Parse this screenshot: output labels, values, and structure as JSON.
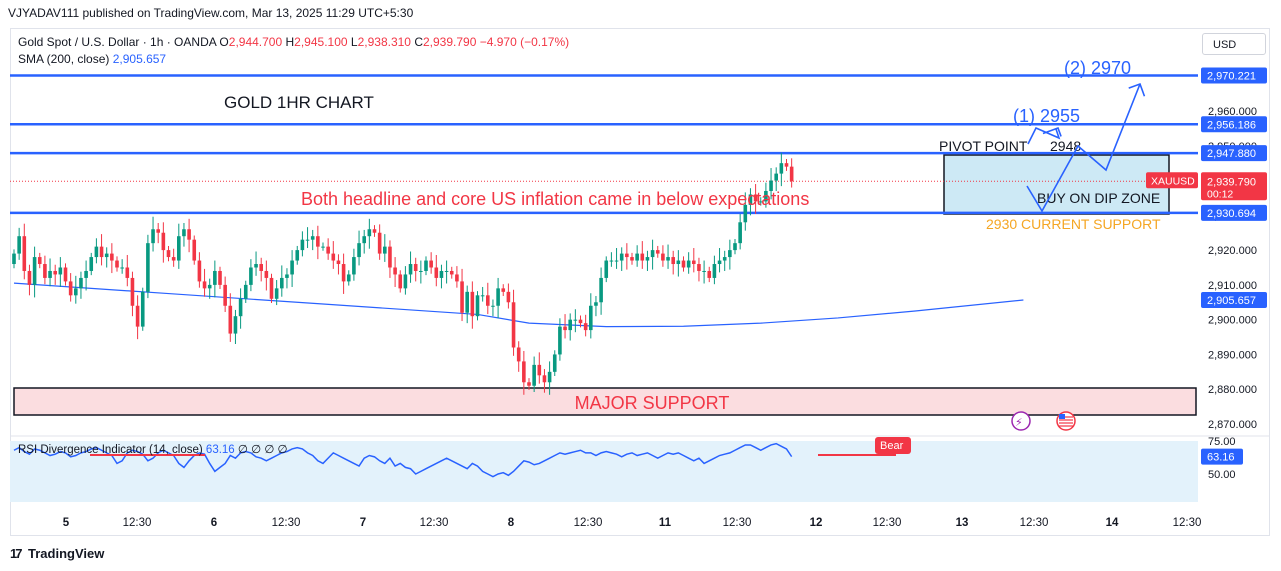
{
  "publisher": "VJYADAV111 published on TradingView.com, Mar 13, 2025 11:29 UTC+5:30",
  "currency_button": "USD",
  "legend": {
    "symbol": "Gold Spot / U.S. Dollar · 1h · OANDA",
    "o_label": "O",
    "o": "2,944.700",
    "h_label": "H",
    "h": "2,945.100",
    "l_label": "L",
    "l": "2,938.310",
    "c_label": "C",
    "c": "2,939.790",
    "change": "−4.970 (−0.17%)",
    "sma_label": "SMA (200, close)",
    "sma": "2,905.657"
  },
  "rsi_legend": {
    "label": "RSI Divergence Indicator (14, close)",
    "value": "63.16",
    "dots": "∅ ∅ ∅ ∅"
  },
  "branding": "TradingView",
  "colors": {
    "up": "#089981",
    "down": "#f23645",
    "level_line": "#2962ff",
    "annotation_blue": "#2962ff",
    "support_orange": "#f5a623",
    "major_support_fill": "#fbdde0",
    "zone_fill": "#cde9f5",
    "rsi_band": "#e3f2fb"
  },
  "chart_data": {
    "type": "candlestick",
    "symbol": "XAUUSD",
    "timeframe": "1h",
    "price_axis": {
      "ticks": [
        2960.0,
        2950.0,
        2940.0,
        2930.0,
        2920.0,
        2910.0,
        2900.0,
        2890.0,
        2880.0,
        2870.0
      ],
      "tick_labels": [
        "2,960.000",
        "2,950.000",
        "2,940.000",
        "2,930.000",
        "2,920.000",
        "2,910.000",
        "2,900.000",
        "2,890.000",
        "2,880.000",
        "2,870.000"
      ],
      "range": [
        2868,
        2973
      ]
    },
    "time_axis": {
      "labels": [
        "5",
        "12:30",
        "6",
        "12:30",
        "7",
        "12:30",
        "8",
        "12:30",
        "11",
        "12:30",
        "12",
        "12:30",
        "13",
        "12:30",
        "14",
        "12:30"
      ],
      "bold": [
        "5",
        "6",
        "7",
        "8",
        "11",
        "12",
        "13",
        "14"
      ]
    },
    "horizontal_levels": [
      {
        "value": 2970.221,
        "label": "2,970.221"
      },
      {
        "value": 2956.186,
        "label": "2,956.186"
      },
      {
        "value": 2947.88,
        "label": "2,947.880"
      },
      {
        "value": 2930.694,
        "label": "2,930.694"
      }
    ],
    "last_price": {
      "symbol": "XAUUSD",
      "value": 2939.79,
      "label": "2,939.790",
      "countdown": "00:12"
    },
    "sma": {
      "period": 200,
      "last": 2905.657,
      "label": "2,905.657",
      "x_bars": [
        0,
        30,
        60,
        90,
        100,
        115,
        130,
        145,
        160,
        175,
        196
      ],
      "values": [
        2910.5,
        2907.5,
        2904.5,
        2901.5,
        2899.0,
        2898.0,
        2898.1,
        2899.0,
        2900.5,
        2902.5,
        2905.657
      ]
    },
    "closes": [
      2919,
      2924,
      2914,
      2910,
      2918,
      2916,
      2912,
      2914,
      2913,
      2915,
      2911,
      2907,
      2909,
      2912,
      2914,
      2918,
      2921,
      2918,
      2919,
      2917,
      2915,
      2915,
      2912,
      2904,
      2898,
      2908,
      2922,
      2926,
      2925,
      2920,
      2918,
      2917,
      2924,
      2926,
      2923,
      2917,
      2911,
      2909,
      2910,
      2914,
      2910,
      2904,
      2896,
      2901,
      2906,
      2910,
      2915,
      2916,
      2914,
      2912,
      2906,
      2909,
      2912,
      2913,
      2917,
      2920,
      2923,
      2923,
      2924,
      2921,
      2921,
      2919,
      2917,
      2916,
      2911,
      2913,
      2918,
      2922,
      2924,
      2926,
      2925,
      2919,
      2921,
      2915,
      2913,
      2909,
      2913,
      2916,
      2914,
      2914,
      2917,
      2915,
      2912,
      2914,
      2914,
      2913,
      2911,
      2902,
      2908,
      2901,
      2907,
      2907,
      2904,
      2904,
      2909,
      2908,
      2905,
      2892,
      2888,
      2882,
      2881,
      2887,
      2884,
      2882,
      2885,
      2890,
      2898,
      2897,
      2900,
      2900,
      2899,
      2897,
      2904,
      2905,
      2912,
      2917,
      2917,
      2917,
      2919,
      2918,
      2917,
      2919,
      2917,
      2918,
      2920,
      2919,
      2917,
      2918,
      2916,
      2917,
      2915,
      2917,
      2916,
      2914,
      2914,
      2912,
      2916,
      2917,
      2918,
      2920,
      2922,
      2928,
      2933,
      2936,
      2934,
      2934,
      2937,
      2940,
      2942,
      2945,
      2944,
      2939.79
    ],
    "annotations": {
      "title": "GOLD 1HR CHART",
      "headline": "Both headline and core US inflation came in below expectations",
      "major_support": "MAJOR SUPPORT",
      "pivot": "PIVOT POINT",
      "pivot_value": "2948",
      "target1": "(1) 2955",
      "target2": "(2) 2970",
      "buy_zone": "BUY ON DIP ZONE",
      "current_support": "2930 CURRENT SUPPORT"
    },
    "rsi": {
      "ticks": [
        75.0,
        50.0
      ],
      "tick_labels": [
        "75.00",
        "50.00"
      ],
      "last": 63.16,
      "last_label": "63.16",
      "bear_label": "Bear",
      "values": [
        68,
        70,
        67,
        65,
        69,
        68,
        66,
        64,
        65,
        67,
        66,
        63,
        64,
        66,
        67,
        69,
        70,
        68,
        66,
        64,
        58,
        60,
        66,
        68,
        67,
        65,
        60,
        62,
        66,
        68,
        66,
        64,
        58,
        55,
        60,
        64,
        66,
        65,
        58,
        52,
        55,
        58,
        64,
        62,
        66,
        67,
        66,
        63,
        62,
        60,
        62,
        64,
        66,
        67,
        69,
        70,
        69,
        66,
        64,
        60,
        58,
        62,
        66,
        64,
        62,
        60,
        58,
        56,
        62,
        64,
        63,
        60,
        58,
        62,
        56,
        58,
        55,
        54,
        50,
        52,
        54,
        56,
        58,
        60,
        62,
        60,
        58,
        56,
        54,
        58,
        56,
        52,
        50,
        48,
        50,
        51,
        49,
        52,
        56,
        60,
        59,
        57,
        58,
        60,
        62,
        64,
        66,
        65,
        66,
        67,
        68,
        66,
        66,
        64,
        66,
        67,
        66,
        65,
        63,
        65,
        66,
        64,
        65,
        66,
        64,
        62,
        64,
        66,
        65,
        66,
        64,
        62,
        60,
        62,
        58,
        60,
        62,
        64,
        65,
        66,
        68,
        70,
        72,
        72,
        70,
        68,
        70,
        72,
        73,
        71,
        69,
        63.16
      ]
    },
    "events": [
      "lightning-icon",
      "us-flag-icon"
    ]
  }
}
